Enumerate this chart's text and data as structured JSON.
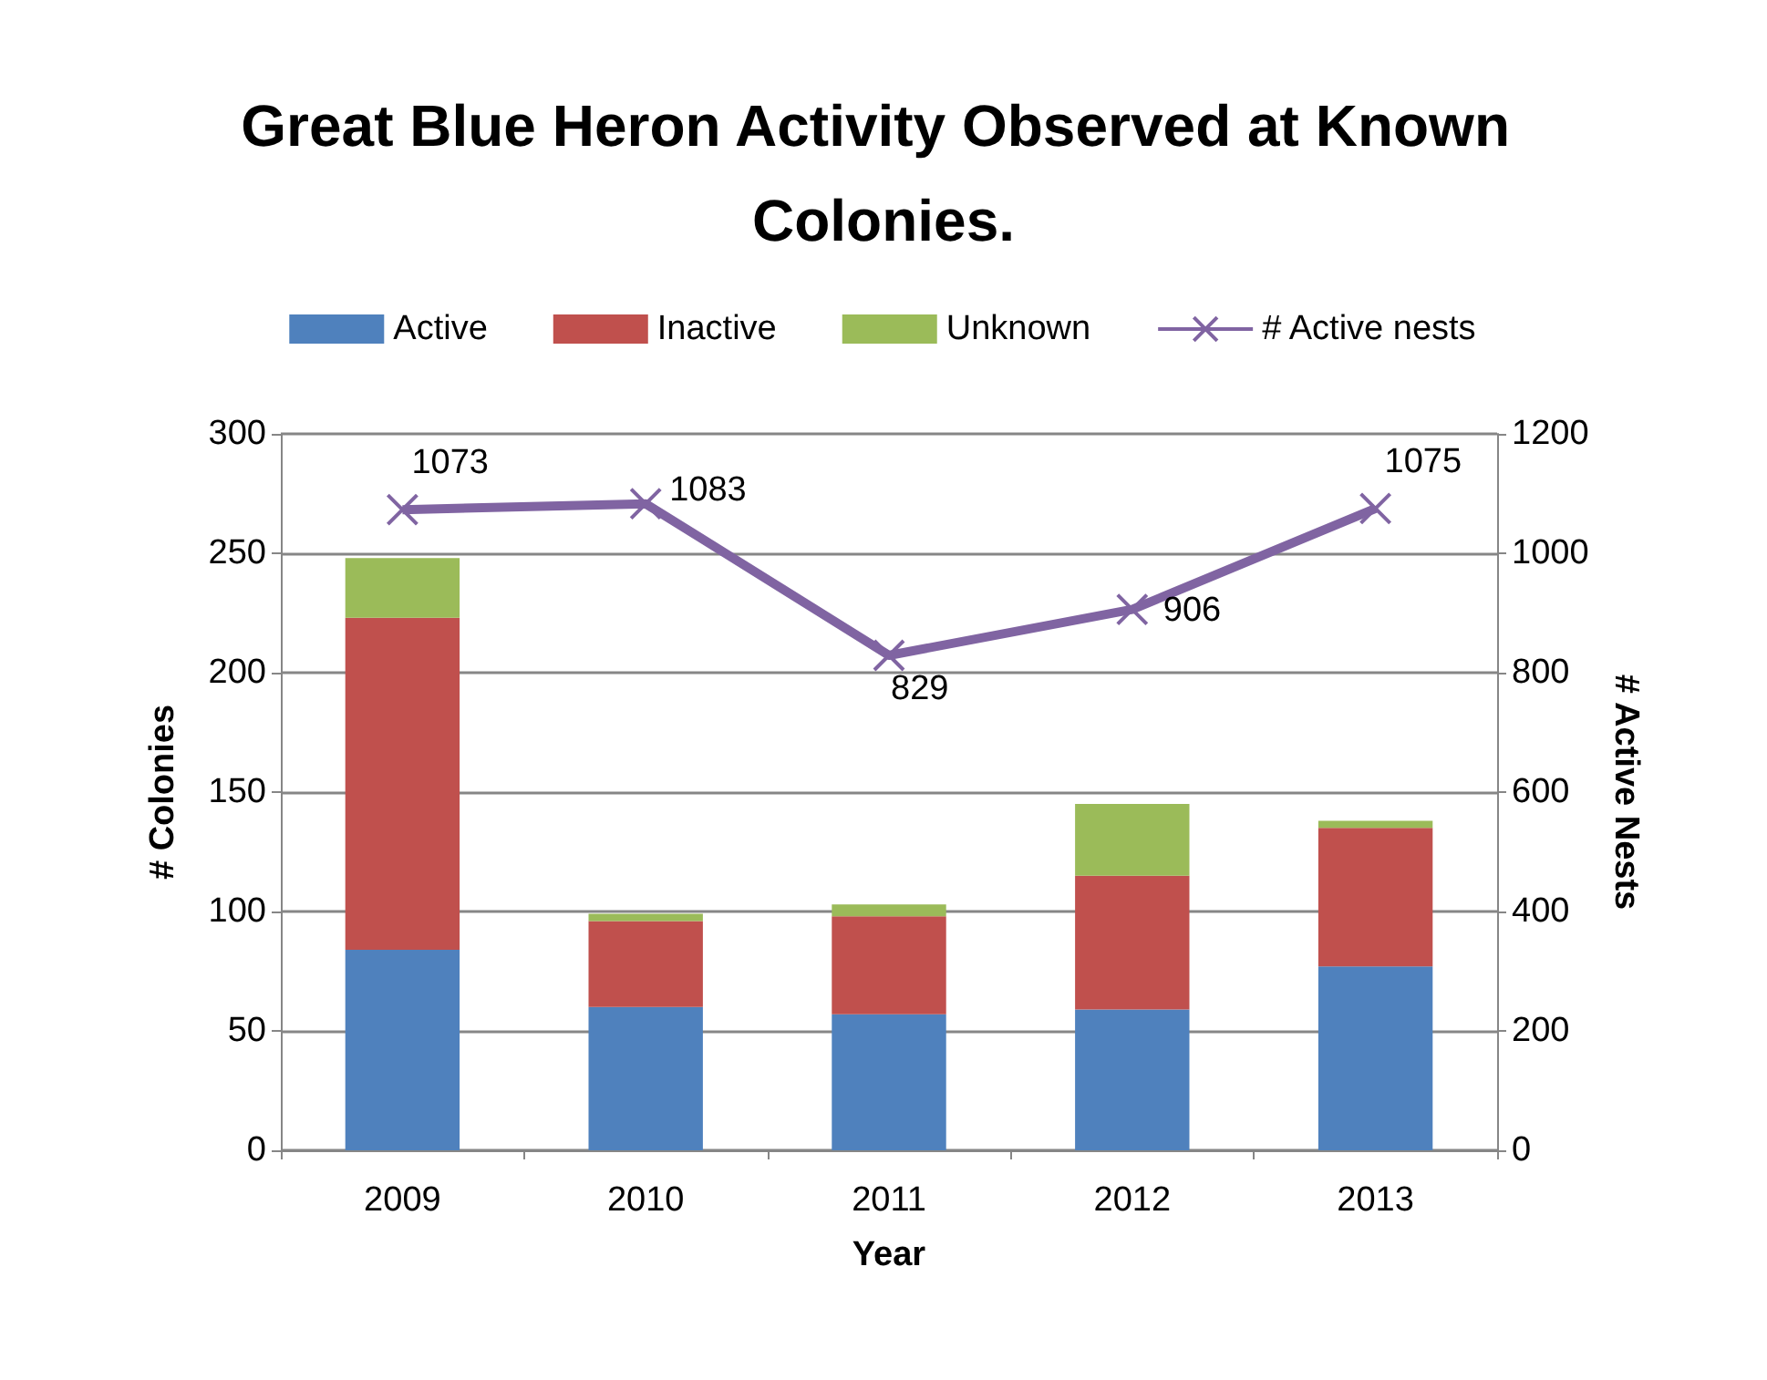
{
  "chart_data": {
    "type": "bar",
    "title": "Great Blue Heron Activity Observed at Known Colonies.",
    "xlabel": "Year",
    "ylabel": "# Colonies",
    "y2label": "# Active Nests",
    "categories": [
      "2009",
      "2010",
      "2011",
      "2012",
      "2013"
    ],
    "stacked": true,
    "series": [
      {
        "name": "Active",
        "color": "#4f81bd",
        "values": [
          84,
          60,
          57,
          59,
          77
        ]
      },
      {
        "name": "Inactive",
        "color": "#c0504d",
        "values": [
          139,
          36,
          41,
          56,
          58
        ]
      },
      {
        "name": "Unknown",
        "color": "#9bbb59",
        "values": [
          25,
          3,
          5,
          30,
          3
        ]
      },
      {
        "name": "# Active nests",
        "type": "line",
        "axis": "y2",
        "color": "#8064a2",
        "marker": "cross",
        "data_labels": true,
        "values": [
          1073,
          1083,
          829,
          906,
          1075
        ]
      }
    ],
    "ylim": [
      0,
      300
    ],
    "yticks": [
      0,
      50,
      100,
      150,
      200,
      250,
      300
    ],
    "y2lim": [
      0,
      1200
    ],
    "y2ticks": [
      0,
      200,
      400,
      600,
      800,
      1000,
      1200
    ],
    "grid": "y",
    "legend": "top"
  }
}
